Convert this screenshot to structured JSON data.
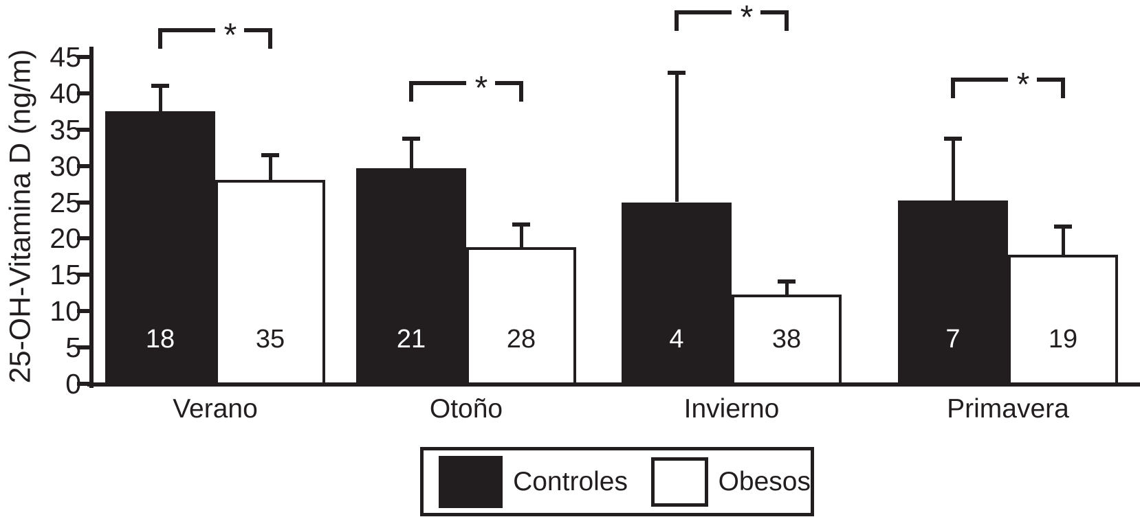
{
  "figure": {
    "background": "#ffffff",
    "ink_color": "#221e1f"
  },
  "chart_data": {
    "type": "bar",
    "title": "",
    "ylabel": "25-OH-Vitamina D (ng/m)",
    "xlabel": "",
    "ylim": [
      0,
      45
    ],
    "yticks": [
      0,
      5,
      10,
      15,
      20,
      25,
      30,
      35,
      40,
      45
    ],
    "grid": false,
    "categories": [
      "Verano",
      "Otoño",
      "Invierno",
      "Primavera"
    ],
    "series": [
      {
        "name": "Controles",
        "color": "#221e1f",
        "n_label_color": "#ffffff",
        "values": [
          37.5,
          29.7,
          25.0,
          25.2
        ],
        "errors_plus": [
          3.5,
          4.0,
          17.8,
          8.5
        ],
        "n": [
          18,
          21,
          4,
          7
        ]
      },
      {
        "name": "Obesos",
        "color": "#ffffff",
        "n_label_color": "#221e1f",
        "values": [
          28.1,
          18.8,
          12.3,
          17.8
        ],
        "errors_plus": [
          3.4,
          3.1,
          1.8,
          3.8
        ],
        "n": [
          35,
          28,
          38,
          19
        ]
      }
    ],
    "significance_brackets": [
      {
        "category": "Verano",
        "label": "*",
        "y_value": 49.0
      },
      {
        "category": "Otoño",
        "label": "*",
        "y_value": 41.7
      },
      {
        "category": "Invierno",
        "label": "*",
        "y_value": 51.4
      },
      {
        "category": "Primavera",
        "label": "*",
        "y_value": 42.2
      }
    ],
    "legend": {
      "position": "bottom-center",
      "entries": [
        "Controles",
        "Obesos"
      ]
    }
  }
}
